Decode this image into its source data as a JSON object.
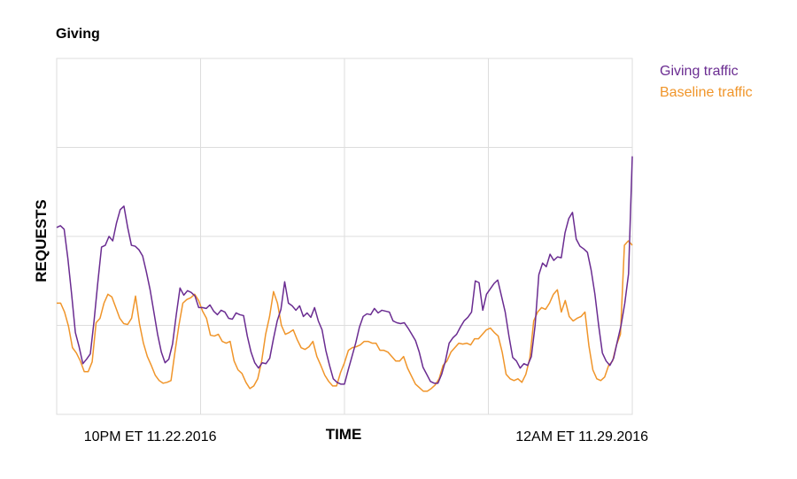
{
  "chart_data": {
    "type": "line",
    "title": "Giving",
    "xlabel": "TIME",
    "ylabel": "REQUESTS",
    "x_tick_labels": [
      "10PM ET 11.22.2016",
      "12AM ET 11.29.2016"
    ],
    "x_tick_positions": [
      26,
      146
    ],
    "x_range": [
      0,
      160
    ],
    "ylim": [
      0,
      4
    ],
    "grid": true,
    "legend_position": "top-right outside",
    "series": [
      {
        "name": "Giving traffic",
        "color": "#6a2c91",
        "values": [
          2.1,
          2.12,
          2.08,
          1.75,
          1.35,
          0.92,
          0.76,
          0.57,
          0.62,
          0.68,
          1.05,
          1.48,
          1.88,
          1.9,
          2.0,
          1.95,
          2.15,
          2.3,
          2.34,
          2.1,
          1.9,
          1.89,
          1.85,
          1.78,
          1.6,
          1.4,
          1.15,
          0.9,
          0.7,
          0.58,
          0.62,
          0.79,
          1.12,
          1.42,
          1.34,
          1.39,
          1.37,
          1.33,
          1.2,
          1.2,
          1.19,
          1.23,
          1.16,
          1.12,
          1.17,
          1.15,
          1.08,
          1.07,
          1.14,
          1.12,
          1.11,
          0.88,
          0.7,
          0.58,
          0.52,
          0.58,
          0.57,
          0.63,
          0.85,
          1.05,
          1.18,
          1.49,
          1.25,
          1.22,
          1.17,
          1.22,
          1.1,
          1.14,
          1.09,
          1.2,
          1.05,
          0.95,
          0.72,
          0.55,
          0.4,
          0.36,
          0.34,
          0.34,
          0.5,
          0.65,
          0.8,
          0.98,
          1.1,
          1.13,
          1.12,
          1.19,
          1.14,
          1.17,
          1.16,
          1.15,
          1.05,
          1.03,
          1.02,
          1.03,
          0.97,
          0.9,
          0.83,
          0.7,
          0.53,
          0.45,
          0.37,
          0.35,
          0.35,
          0.45,
          0.6,
          0.8,
          0.86,
          0.9,
          0.98,
          1.05,
          1.09,
          1.15,
          1.5,
          1.48,
          1.17,
          1.35,
          1.41,
          1.47,
          1.51,
          1.33,
          1.15,
          0.88,
          0.64,
          0.6,
          0.52,
          0.57,
          0.55,
          0.65,
          1.0,
          1.57,
          1.7,
          1.66,
          1.8,
          1.73,
          1.77,
          1.76,
          2.04,
          2.2,
          2.27,
          1.97,
          1.89,
          1.86,
          1.82,
          1.62,
          1.35,
          1.0,
          0.69,
          0.6,
          0.55,
          0.63,
          0.82,
          1.0,
          1.25,
          1.58,
          2.9
        ]
      },
      {
        "name": "Baseline traffic",
        "color": "#f0952a",
        "values": [
          1.25,
          1.25,
          1.15,
          0.99,
          0.75,
          0.69,
          0.6,
          0.48,
          0.48,
          0.59,
          1.03,
          1.08,
          1.25,
          1.35,
          1.32,
          1.2,
          1.08,
          1.02,
          1.01,
          1.08,
          1.33,
          1.02,
          0.8,
          0.65,
          0.55,
          0.44,
          0.38,
          0.35,
          0.36,
          0.38,
          0.7,
          1.0,
          1.25,
          1.29,
          1.31,
          1.35,
          1.28,
          1.16,
          1.08,
          0.89,
          0.88,
          0.9,
          0.82,
          0.8,
          0.82,
          0.6,
          0.5,
          0.46,
          0.36,
          0.29,
          0.32,
          0.4,
          0.6,
          0.9,
          1.1,
          1.38,
          1.25,
          1.0,
          0.9,
          0.92,
          0.95,
          0.84,
          0.75,
          0.73,
          0.76,
          0.82,
          0.65,
          0.55,
          0.44,
          0.37,
          0.32,
          0.32,
          0.47,
          0.58,
          0.72,
          0.75,
          0.76,
          0.78,
          0.82,
          0.82,
          0.8,
          0.8,
          0.72,
          0.72,
          0.7,
          0.65,
          0.6,
          0.6,
          0.65,
          0.52,
          0.43,
          0.34,
          0.3,
          0.26,
          0.26,
          0.29,
          0.33,
          0.4,
          0.55,
          0.6,
          0.7,
          0.75,
          0.8,
          0.79,
          0.8,
          0.78,
          0.85,
          0.85,
          0.9,
          0.95,
          0.97,
          0.92,
          0.88,
          0.7,
          0.45,
          0.4,
          0.38,
          0.4,
          0.36,
          0.45,
          0.63,
          1.05,
          1.15,
          1.2,
          1.18,
          1.25,
          1.35,
          1.4,
          1.15,
          1.28,
          1.1,
          1.05,
          1.08,
          1.1,
          1.15,
          0.77,
          0.5,
          0.4,
          0.38,
          0.42,
          0.55,
          0.6,
          0.78,
          0.9,
          1.9,
          1.95,
          1.9
        ]
      }
    ]
  }
}
